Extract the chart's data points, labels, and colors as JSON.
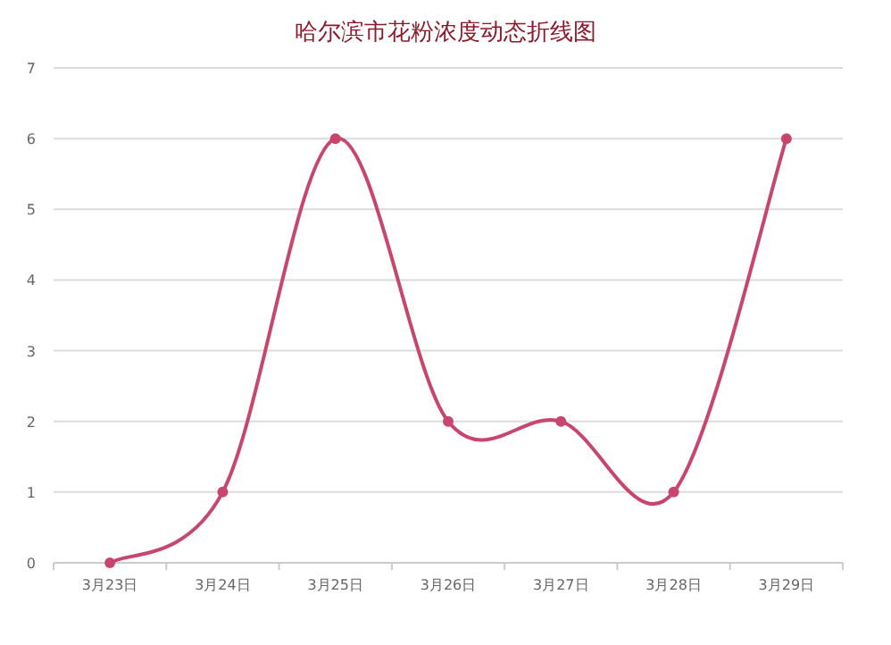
{
  "chart_data": {
    "type": "line",
    "title": "哈尔滨市花粉浓度动态折线图",
    "categories": [
      "3月23日",
      "3月24日",
      "3月25日",
      "3月26日",
      "3月27日",
      "3月28日",
      "3月29日"
    ],
    "values": [
      0,
      1,
      6,
      2,
      2,
      1,
      6
    ],
    "color": "#c8466e",
    "ylim": [
      0,
      7
    ],
    "yticks": [
      0,
      1,
      2,
      3,
      4,
      5,
      6,
      7
    ],
    "grid": "y",
    "marker": "circle"
  }
}
